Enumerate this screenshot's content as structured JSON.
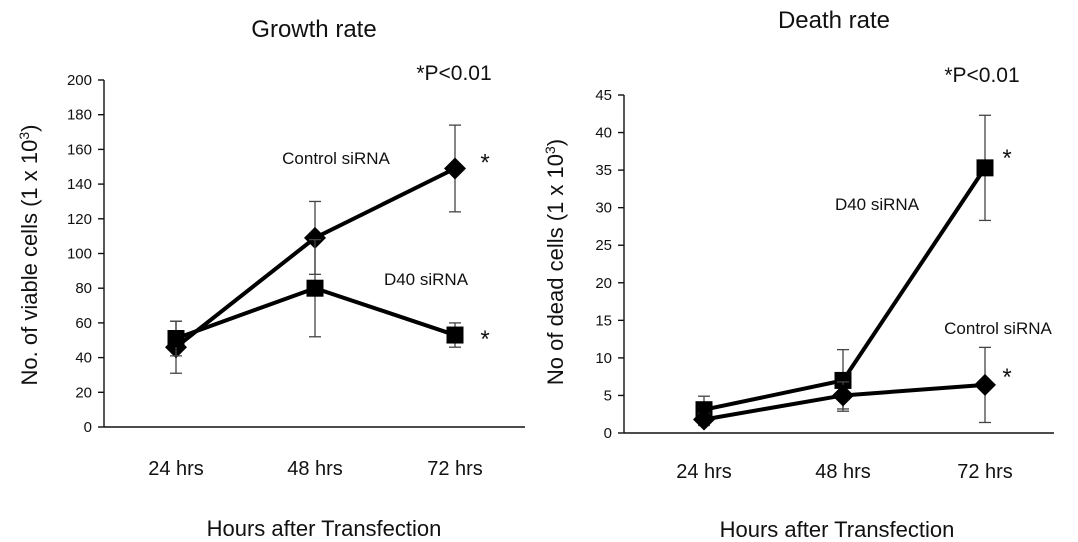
{
  "chart_data": [
    {
      "type": "line",
      "title": "Growth rate",
      "xlabel": "Hours after Transfection",
      "ylabel": "No. of viable cells (1 x 10",
      "ylabel_sup": "3",
      "ylabel_close": ")",
      "categories": [
        "24 hrs",
        "48 hrs",
        "72 hrs"
      ],
      "ylim": [
        0,
        200
      ],
      "yticks": [
        0,
        20,
        40,
        60,
        80,
        100,
        120,
        140,
        160,
        180,
        200
      ],
      "grid": false,
      "pvalue_note": "*P<0.01",
      "series": [
        {
          "name": "Control siRNA",
          "marker": "diamond",
          "values": [
            46,
            109,
            149
          ],
          "errors": [
            15,
            21,
            25
          ],
          "label_anchor_index": 1,
          "significance": [
            null,
            null,
            "*"
          ]
        },
        {
          "name": "D40 siRNA",
          "marker": "square",
          "values": [
            51,
            80,
            53
          ],
          "errors": [
            10,
            28,
            7
          ],
          "label_anchor_index": 1,
          "significance": [
            null,
            null,
            "*"
          ]
        }
      ]
    },
    {
      "type": "line",
      "title": "Death rate",
      "xlabel": "Hours after Transfection",
      "ylabel": "No of dead cells (1 x 10",
      "ylabel_sup": "3",
      "ylabel_close": ")",
      "categories": [
        "24 hrs",
        "48 hrs",
        "72 hrs"
      ],
      "ylim": [
        0,
        45
      ],
      "yticks": [
        0,
        5,
        10,
        15,
        20,
        25,
        30,
        35,
        40,
        45
      ],
      "grid": false,
      "pvalue_note": "*P<0.01",
      "series": [
        {
          "name": "D40 siRNA",
          "marker": "square",
          "values": [
            3.1,
            7,
            35.3
          ],
          "errors": [
            1.8,
            4.1,
            7
          ],
          "label_anchor_index": 1,
          "significance": [
            null,
            null,
            "*"
          ]
        },
        {
          "name": "Control siRNA",
          "marker": "diamond",
          "values": [
            1.8,
            5,
            6.4
          ],
          "errors": [
            0.8,
            1.8,
            5
          ],
          "label_anchor_index": 2,
          "significance": [
            null,
            null,
            "*"
          ]
        }
      ]
    }
  ]
}
